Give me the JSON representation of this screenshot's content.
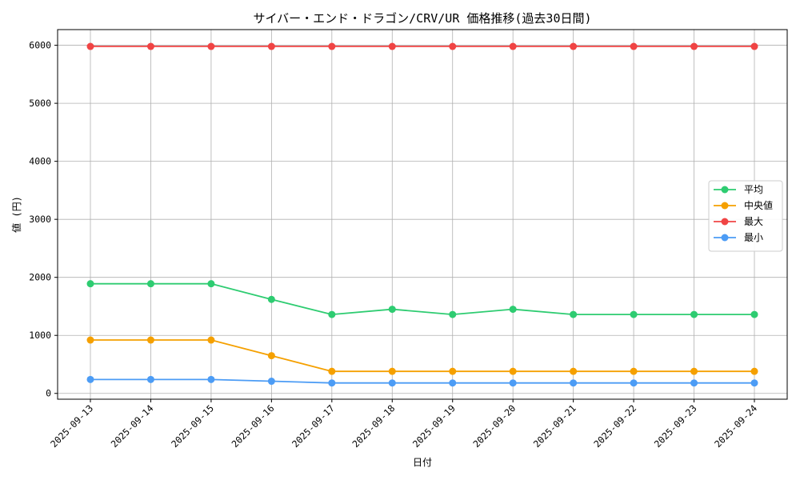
{
  "chart_data": {
    "type": "line",
    "title": "サイバー・エンド・ドラゴン/CRV/UR 価格推移(過去30日間)",
    "xlabel": "日付",
    "ylabel": "値 (円)",
    "ylim": [
      -100,
      6270
    ],
    "yticks": [
      0,
      1000,
      2000,
      3000,
      4000,
      5000,
      6000
    ],
    "grid": true,
    "legend_position": "center-right",
    "categories": [
      "2025-09-13",
      "2025-09-14",
      "2025-09-15",
      "2025-09-16",
      "2025-09-17",
      "2025-09-18",
      "2025-09-19",
      "2025-09-20",
      "2025-09-21",
      "2025-09-22",
      "2025-09-23",
      "2025-09-24"
    ],
    "series": [
      {
        "name": "平均",
        "color": "#2ecc71",
        "values": [
          1890,
          1890,
          1890,
          1620,
          1360,
          1450,
          1360,
          1450,
          1360,
          1360,
          1360,
          1360
        ]
      },
      {
        "name": "中央値",
        "color": "#f5a000",
        "values": [
          920,
          920,
          920,
          650,
          380,
          380,
          380,
          380,
          380,
          380,
          380,
          380
        ]
      },
      {
        "name": "最大",
        "color": "#f04444",
        "values": [
          5980,
          5980,
          5980,
          5980,
          5980,
          5980,
          5980,
          5980,
          5980,
          5980,
          5980,
          5980
        ]
      },
      {
        "name": "最小",
        "color": "#4c9cf5",
        "values": [
          240,
          240,
          240,
          210,
          180,
          180,
          180,
          180,
          180,
          180,
          180,
          180
        ]
      }
    ]
  }
}
